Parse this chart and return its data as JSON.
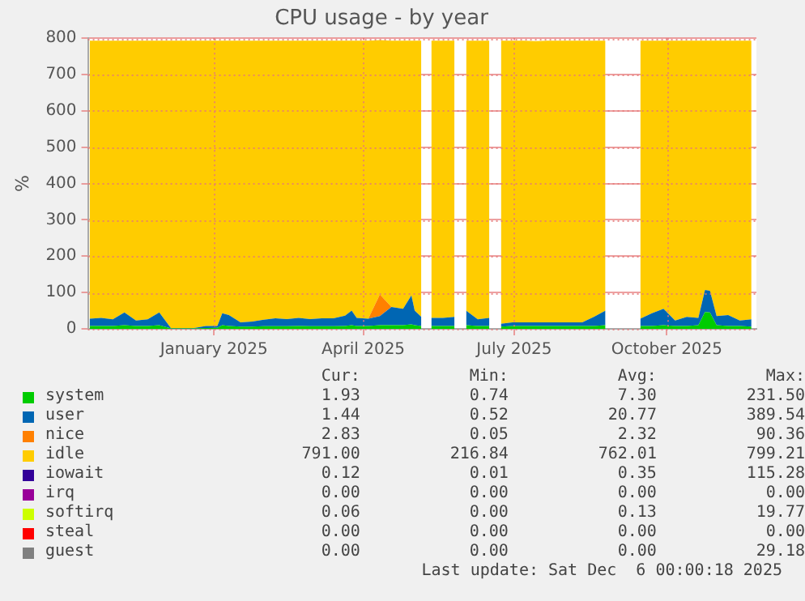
{
  "chart_data": {
    "type": "area",
    "title": "CPU usage - by year",
    "ylabel": "%",
    "stacked": true,
    "grid": true,
    "legend": "bottom",
    "x": [
      "2024-10-18",
      "2024-10-25",
      "2024-11-01",
      "2024-11-08",
      "2024-11-15",
      "2024-11-22",
      "2024-11-29",
      "2024-12-06",
      "2024-12-13",
      "2024-12-20",
      "2024-12-27",
      "2025-01-03",
      "2025-01-06",
      "2025-01-10",
      "2025-01-17",
      "2025-01-24",
      "2025-01-31",
      "2025-02-07",
      "2025-02-14",
      "2025-02-21",
      "2025-02-28",
      "2025-03-07",
      "2025-03-14",
      "2025-03-21",
      "2025-03-25",
      "2025-03-28",
      "2025-04-04",
      "2025-04-11",
      "2025-04-18",
      "2025-04-25",
      "2025-04-30",
      "2025-05-02",
      "2025-05-06",
      "2025-05-09",
      "2025-05-12",
      "2025-05-19",
      "2025-05-26",
      "2025-05-30",
      "2025-06-02",
      "2025-06-09",
      "2025-06-16",
      "2025-06-20",
      "2025-06-23",
      "2025-06-30",
      "2025-07-07",
      "2025-07-14",
      "2025-07-21",
      "2025-07-28",
      "2025-08-04",
      "2025-08-11",
      "2025-08-18",
      "2025-08-25",
      "2025-09-01",
      "2025-09-15",
      "2025-09-22",
      "2025-09-29",
      "2025-10-06",
      "2025-10-13",
      "2025-10-20",
      "2025-10-24",
      "2025-10-27",
      "2025-10-31",
      "2025-11-07",
      "2025-11-14",
      "2025-11-21"
    ],
    "xlim": [
      "2024-10-17",
      "2025-11-24"
    ],
    "xticks": [
      {
        "value": "2025-01-01",
        "label": "January 2025"
      },
      {
        "value": "2025-04-01",
        "label": "April 2025"
      },
      {
        "value": "2025-07-01",
        "label": "July 2025"
      },
      {
        "value": "2025-10-01",
        "label": "October 2025"
      }
    ],
    "ylim": [
      0,
      800
    ],
    "yticks": [
      0,
      100,
      200,
      300,
      400,
      500,
      600,
      700,
      800
    ],
    "series": [
      {
        "name": "system",
        "color": "#00cc00",
        "values": [
          8,
          8,
          8,
          10,
          8,
          8,
          10,
          1,
          1,
          1,
          2,
          3,
          10,
          8,
          6,
          6,
          7,
          7,
          7,
          8,
          7,
          7,
          7,
          8,
          10,
          8,
          8,
          10,
          10,
          10,
          12,
          10,
          8,
          null,
          8,
          8,
          8,
          null,
          10,
          8,
          8,
          null,
          6,
          8,
          8,
          8,
          8,
          8,
          8,
          8,
          8,
          10,
          null,
          8,
          8,
          10,
          8,
          8,
          10,
          46,
          45,
          10,
          8,
          8,
          6
        ]
      },
      {
        "name": "user",
        "color": "#0066b3",
        "values": [
          20,
          22,
          18,
          35,
          15,
          18,
          35,
          1,
          1,
          1,
          6,
          5,
          33,
          30,
          12,
          14,
          18,
          22,
          20,
          22,
          20,
          22,
          22,
          28,
          40,
          22,
          20,
          25,
          50,
          45,
          80,
          40,
          25,
          null,
          22,
          22,
          25,
          null,
          40,
          18,
          22,
          null,
          8,
          10,
          10,
          10,
          10,
          10,
          10,
          10,
          25,
          40,
          null,
          20,
          35,
          45,
          15,
          25,
          20,
          61,
          60,
          25,
          30,
          15,
          20
        ]
      },
      {
        "name": "nice",
        "color": "#ff8000",
        "values": [
          null,
          null,
          null,
          null,
          null,
          null,
          null,
          null,
          null,
          null,
          null,
          null,
          null,
          null,
          null,
          null,
          null,
          null,
          null,
          null,
          null,
          null,
          null,
          null,
          null,
          null,
          0,
          60,
          0,
          null,
          null,
          null,
          null,
          null,
          null,
          null,
          null,
          null,
          null,
          null,
          null,
          null,
          null,
          null,
          null,
          null,
          null,
          null,
          null,
          null,
          null,
          null,
          null,
          null,
          null,
          null,
          null,
          null,
          null,
          null,
          null,
          null,
          null,
          null,
          null
        ]
      },
      {
        "name": "idle",
        "color": "#ffcc00",
        "values": [
          765,
          763,
          767,
          748,
          770,
          767,
          748,
          791,
          791,
          791,
          785,
          785,
          750,
          755,
          775,
          773,
          768,
          764,
          766,
          763,
          766,
          764,
          764,
          757,
          743,
          763,
          765,
          700,
          733,
          738,
          701,
          743,
          760,
          null,
          763,
          763,
          760,
          null,
          743,
          767,
          763,
          null,
          779,
          775,
          775,
          774,
          775,
          775,
          775,
          775,
          760,
          743,
          null,
          765,
          750,
          738,
          770,
          760,
          763,
          686,
          688,
          758,
          755,
          770,
          767
        ]
      },
      {
        "name": "iowait",
        "color": "#330099",
        "values": [
          null,
          null,
          null,
          null,
          null,
          null,
          null,
          null,
          null,
          null,
          null,
          null,
          null,
          null,
          null,
          null,
          null,
          null,
          null,
          null,
          null,
          null,
          null,
          null,
          null,
          null,
          null,
          null,
          null,
          null,
          null,
          null,
          null,
          null,
          null,
          null,
          null,
          null,
          null,
          null,
          null,
          null,
          null,
          null,
          null,
          null,
          null,
          null,
          null,
          null,
          null,
          null,
          null,
          null,
          null,
          null,
          null,
          null,
          null,
          null,
          null,
          null,
          null,
          null,
          null
        ]
      },
      {
        "name": "irq",
        "color": "#990099",
        "values": [
          null,
          null,
          null,
          null,
          null,
          null,
          null,
          null,
          null,
          null,
          null,
          null,
          null,
          null,
          null,
          null,
          null,
          null,
          null,
          null,
          null,
          null,
          null,
          null,
          null,
          null,
          null,
          null,
          null,
          null,
          null,
          null,
          null,
          null,
          null,
          null,
          null,
          null,
          null,
          null,
          null,
          null,
          null,
          null,
          null,
          null,
          null,
          null,
          null,
          null,
          null,
          null,
          null,
          null,
          null,
          null,
          null,
          null,
          null,
          null,
          null,
          null,
          null,
          null,
          null
        ]
      },
      {
        "name": "softirq",
        "color": "#ccff00",
        "values": [
          null,
          null,
          null,
          null,
          null,
          null,
          null,
          null,
          null,
          null,
          null,
          null,
          null,
          null,
          null,
          null,
          null,
          null,
          null,
          null,
          null,
          null,
          null,
          null,
          null,
          null,
          null,
          null,
          null,
          null,
          null,
          null,
          null,
          null,
          null,
          null,
          null,
          null,
          null,
          null,
          null,
          null,
          null,
          null,
          null,
          null,
          null,
          null,
          null,
          null,
          null,
          null,
          null,
          null,
          null,
          null,
          null,
          null,
          null,
          null,
          null,
          null,
          null,
          null,
          null
        ]
      },
      {
        "name": "steal",
        "color": "#ff0000",
        "values": [
          null,
          null,
          null,
          null,
          null,
          null,
          null,
          null,
          null,
          null,
          null,
          null,
          null,
          null,
          null,
          null,
          null,
          null,
          null,
          null,
          null,
          null,
          null,
          null,
          null,
          null,
          null,
          null,
          null,
          null,
          null,
          null,
          null,
          null,
          null,
          null,
          null,
          null,
          null,
          null,
          null,
          null,
          null,
          null,
          null,
          null,
          null,
          null,
          null,
          null,
          null,
          null,
          null,
          null,
          null,
          null,
          null,
          null,
          null,
          null,
          null,
          null,
          null,
          null,
          null
        ]
      },
      {
        "name": "guest",
        "color": "#808080",
        "values": [
          null,
          null,
          null,
          null,
          null,
          null,
          null,
          null,
          null,
          null,
          null,
          null,
          null,
          null,
          null,
          null,
          null,
          null,
          null,
          null,
          null,
          null,
          null,
          null,
          null,
          null,
          null,
          null,
          null,
          null,
          null,
          null,
          null,
          null,
          null,
          null,
          null,
          null,
          null,
          null,
          null,
          null,
          null,
          null,
          null,
          null,
          null,
          null,
          null,
          null,
          null,
          null,
          null,
          null,
          null,
          null,
          null,
          null,
          null,
          null,
          null,
          null,
          null,
          null,
          null
        ]
      }
    ],
    "annotations": [
      "Cur:",
      "Min:",
      "Avg:",
      "Max:",
      "1.93",
      "0.74",
      "7.30",
      "231.50",
      "1.44",
      "0.52",
      "20.77",
      "389.54",
      "2.83",
      "0.05",
      "2.32",
      "90.36",
      "791.00",
      "216.84",
      "762.01",
      "799.21",
      "0.12",
      "0.01",
      "0.35",
      "115.28",
      "0.00",
      "0.00",
      "0.00",
      "0.00",
      "0.06",
      "0.00",
      "0.13",
      "19.77",
      "0.00",
      "0.00",
      "0.00",
      "0.00",
      "0.00",
      "0.00",
      "0.00",
      "29.18",
      "Last update: Sat Dec  6 00:00:18 2025"
    ]
  }
}
